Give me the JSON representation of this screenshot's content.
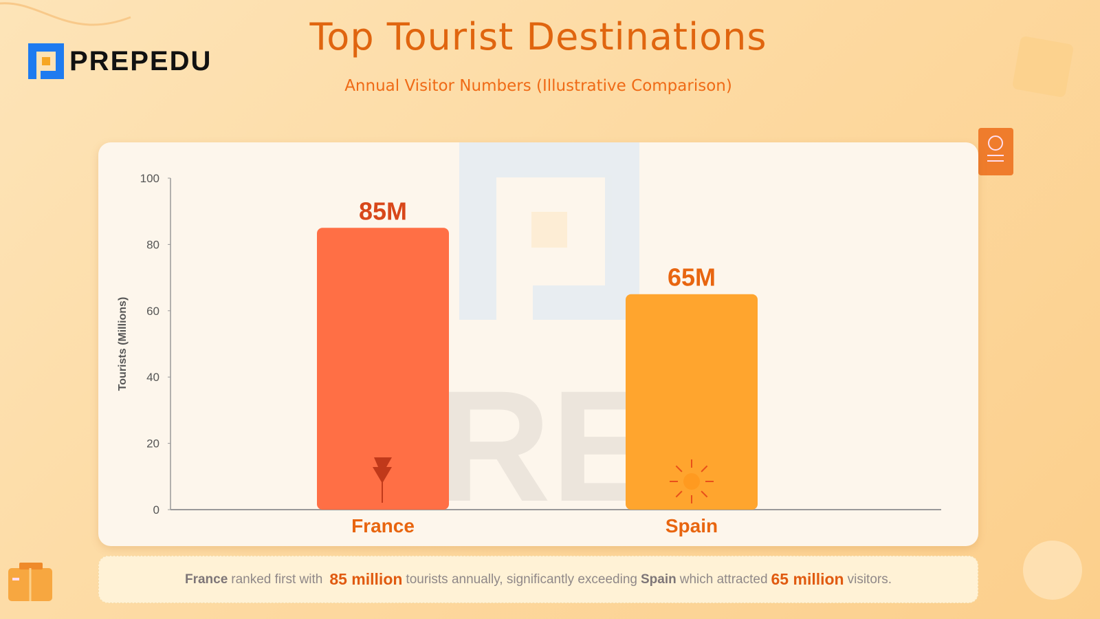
{
  "brand": {
    "name": "PREPEDU",
    "watermark": "PREP"
  },
  "header": {
    "title": "Top Tourist Destinations",
    "subtitle": "Annual Visitor Numbers (Illustrative Comparison)"
  },
  "chart_data": {
    "type": "bar",
    "categories": [
      "France",
      "Spain"
    ],
    "values": [
      85,
      65
    ],
    "data_labels": [
      "85M",
      "65M"
    ],
    "ylabel": "Tourists (Millions)",
    "ylim": [
      0,
      100
    ],
    "yticks": [
      0,
      20,
      40,
      60,
      80,
      100
    ],
    "grid": false,
    "colors": [
      "#ff6f45",
      "#ffa52e"
    ],
    "icons": [
      "eiffel-tower-icon",
      "sun-icon"
    ]
  },
  "caption": {
    "p1": "France",
    "p2": "ranked first with",
    "p3": "85 million",
    "p4": "tourists annually, significantly exceeding",
    "p5": "Spain",
    "p6": "which attracted",
    "p7": "65 million",
    "p8": "visitors."
  },
  "colors": {
    "accent": "#e0650f",
    "brand_blue": "#1e7bf0",
    "highlight": "#e05a10"
  }
}
